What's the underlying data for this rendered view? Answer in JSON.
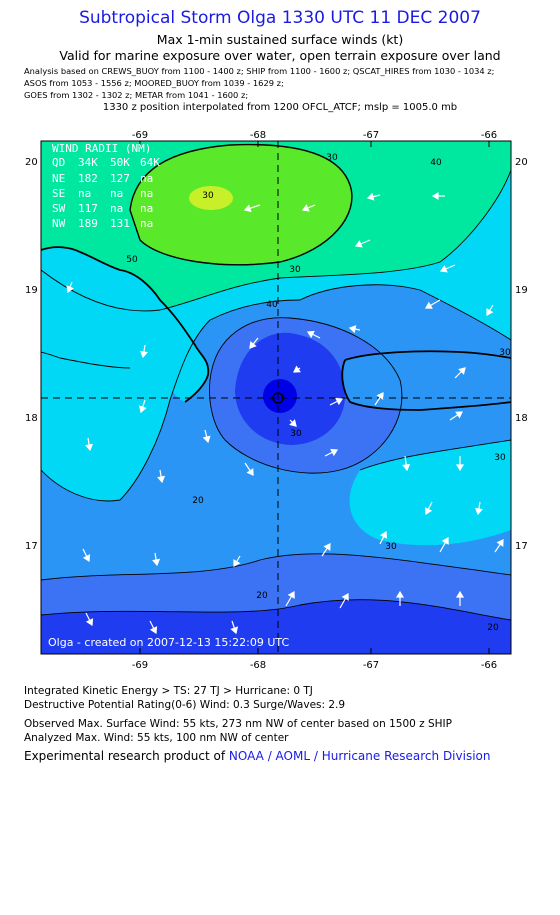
{
  "header": {
    "title": "Subtropical Storm Olga 1330 UTC 11 DEC 2007",
    "subtitle": "Max 1-min sustained surface winds (kt)",
    "valid_line": "Valid for marine exposure over water, open terrain exposure over land",
    "sources": [
      "Analysis based on  CREWS_BUOY from 1100 - 1400 z;  SHIP from 1100 - 1600 z;  QSCAT_HIRES from 1030 - 1034 z;",
      "ASOS from 1053 - 1556 z;  MOORED_BUOY from 1039 - 1629 z;",
      "GOES from 1302 - 1302 z;  METAR from 1041 - 1600 z;"
    ],
    "position_line": "1330 z position interpolated from 1200 OFCL_ATCF; mslp = 1005.0 mb"
  },
  "map": {
    "x_ticks": [
      "-69",
      "-68",
      "-67",
      "-66"
    ],
    "y_ticks": [
      "20",
      "19",
      "18",
      "17"
    ],
    "contour_labels": [
      "30",
      "40",
      "50",
      "30",
      "40",
      "30",
      "20",
      "30",
      "30",
      "30",
      "20",
      "20",
      "30"
    ],
    "wind_radii": {
      "title": "WIND RADII (NM)",
      "header": [
        "QD",
        "34K",
        "50K",
        "64K"
      ],
      "rows": [
        [
          "NE",
          "182",
          "127",
          "na"
        ],
        [
          "SE",
          "na",
          "na",
          "na"
        ],
        [
          "SW",
          "117",
          "na",
          "na"
        ],
        [
          "NW",
          "189",
          "131",
          "na"
        ]
      ]
    },
    "credit": "Olga - created on 2007-12-13 15:22:09 UTC",
    "colors": {
      "lt10": "#0000e6",
      "c10_15": "#1f3cf0",
      "c15_20": "#3c73f5",
      "c20_30": "#2a95f5",
      "c30_40": "#00d8f5",
      "c40_50": "#00e8a0",
      "c50_55": "#5ae82a",
      "gt55": "#c8f028",
      "land": "#ffffff"
    }
  },
  "footer": {
    "ike": "Integrated Kinetic Energy > TS: 27 TJ   > Hurricane: 0 TJ",
    "dpr": "Destructive Potential Rating(0-6)   Wind: 0.3 Surge/Waves: 2.9",
    "observed": "Observed Max. Surface Wind: 55 kts, 273 nm NW of center based on 1500 z SHIP",
    "analyzed": "Analyzed Max. Wind: 55 kts, 100 nm NW of center",
    "product_prefix": "Experimental research product of ",
    "product_link": "NOAA / AOML / Hurricane Research Division"
  }
}
